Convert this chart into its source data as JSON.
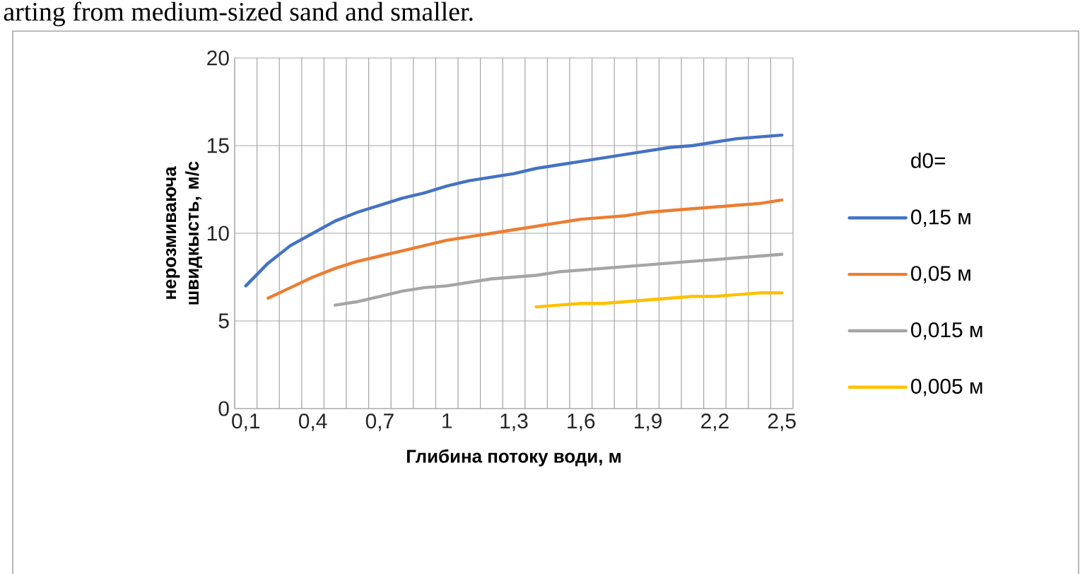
{
  "chart_data": {
    "type": "line",
    "annotations": [
      "arting from medium-sized sand and smaller."
    ],
    "xlabel": "Глибина потоку води, м",
    "ylabel": "нерозмиваюча швидкысть, м/с",
    "legend_title": "d0=",
    "categories": [
      "0,1",
      null,
      null,
      "0,4",
      null,
      null,
      "0,7",
      null,
      null,
      "1",
      null,
      null,
      "1,3",
      null,
      null,
      "1,6",
      null,
      null,
      "1,9",
      null,
      null,
      "2,2",
      null,
      null,
      "2,5"
    ],
    "series": [
      {
        "name": "0,15 м",
        "color": "#4472c4",
        "values": [
          7.0,
          8.3,
          9.3,
          10.0,
          10.7,
          11.2,
          11.6,
          12.0,
          12.3,
          12.7,
          13.0,
          13.2,
          13.4,
          13.7,
          13.9,
          14.1,
          14.3,
          14.5,
          14.7,
          14.9,
          15.0,
          15.2,
          15.4,
          15.5,
          15.6
        ]
      },
      {
        "name": "0,05 м",
        "color": "#ed7d31",
        "values": [
          null,
          6.3,
          6.9,
          7.5,
          8.0,
          8.4,
          8.7,
          9.0,
          9.3,
          9.6,
          9.8,
          10.0,
          10.2,
          10.4,
          10.6,
          10.8,
          10.9,
          11.0,
          11.2,
          11.3,
          11.4,
          11.5,
          11.6,
          11.7,
          11.9
        ]
      },
      {
        "name": "0,015 м",
        "color": "#a5a5a5",
        "values": [
          null,
          null,
          null,
          null,
          5.9,
          6.1,
          6.4,
          6.7,
          6.9,
          7.0,
          7.2,
          7.4,
          7.5,
          7.6,
          7.8,
          7.9,
          8.0,
          8.1,
          8.2,
          8.3,
          8.4,
          8.5,
          8.6,
          8.7,
          8.8
        ]
      },
      {
        "name": "0,005 м",
        "color": "#ffc000",
        "values": [
          null,
          null,
          null,
          null,
          null,
          null,
          null,
          null,
          null,
          null,
          null,
          null,
          null,
          5.8,
          5.9,
          6.0,
          6.0,
          6.1,
          6.2,
          6.3,
          6.4,
          6.4,
          6.5,
          6.6,
          6.6
        ]
      }
    ],
    "ylim": [
      0,
      20
    ],
    "yticks": [
      0,
      5,
      10,
      15,
      20
    ],
    "grid": true,
    "legend": "right"
  }
}
